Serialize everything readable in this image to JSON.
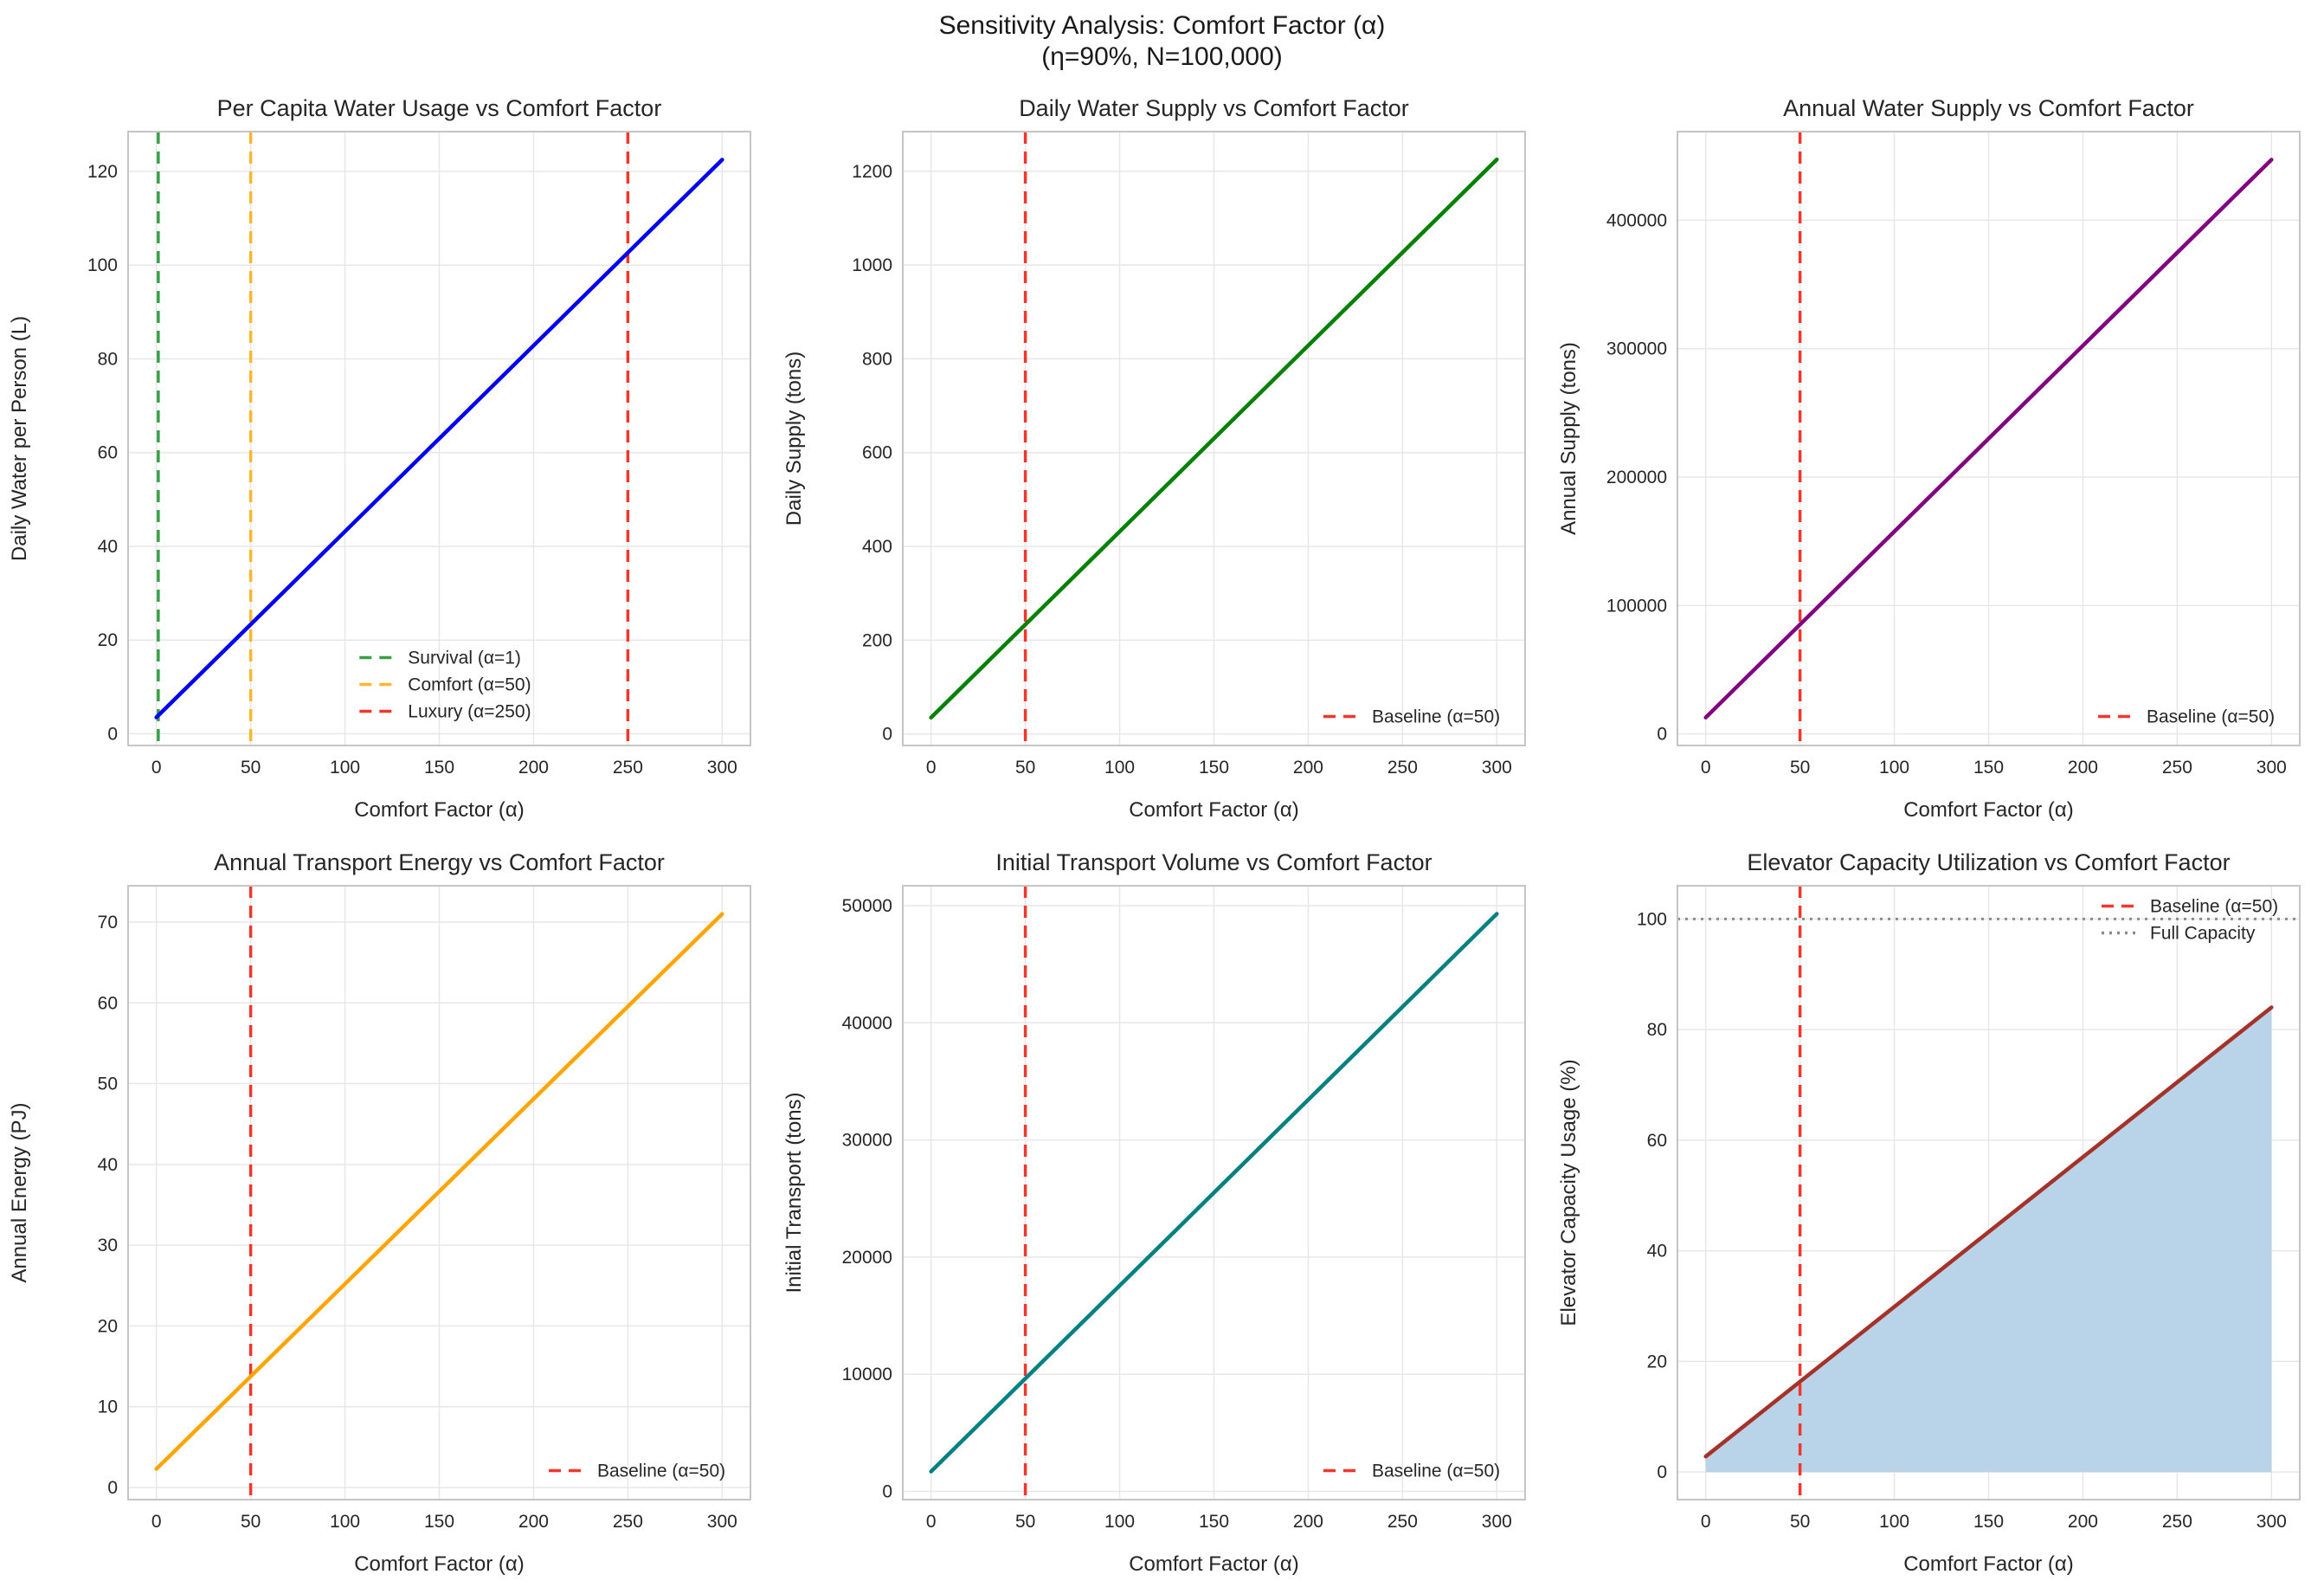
{
  "suptitle": {
    "line1": "Sensitivity Analysis: Comfort Factor (α)",
    "line2": "(η=90%, N=100,000)"
  },
  "style": {
    "grid_color": "#e7e7e7",
    "spine_color": "#c5c5c5",
    "text_color": "#262626",
    "background": "#ffffff",
    "baseline_red": "#f1362c",
    "survival_green": "#3aa048",
    "comfort_orange": "#ffb52e",
    "full_capacity_gray": "#8c8c8c",
    "capacity_fill": "#b9d4e8"
  },
  "chart_data": [
    {
      "key": "per-capita-water",
      "type": "line",
      "title": "Per Capita Water Usage vs Comfort Factor",
      "xlabel": "Comfort Factor (α)",
      "ylabel": "Daily Water per Person (L)",
      "xlim": [
        -15,
        315
      ],
      "ylim": [
        -2.5,
        128.5
      ],
      "xticks": [
        0,
        50,
        100,
        150,
        200,
        250,
        300
      ],
      "yticks": [
        0,
        20,
        40,
        60,
        80,
        100,
        120
      ],
      "grid": true,
      "series": [
        {
          "name": "per-capita-usage",
          "x": [
            0,
            300
          ],
          "y": [
            3.5,
            122.5
          ],
          "color": "#0000f0",
          "width": 4.5,
          "style": "solid"
        }
      ],
      "vlines": [
        {
          "x": 1,
          "label": "Survival (α=1)",
          "color": "#3aa048",
          "style": "dashed",
          "width": 3.5
        },
        {
          "x": 50,
          "label": "Comfort (α=50)",
          "color": "#ffb52e",
          "style": "dashed",
          "width": 3.5
        },
        {
          "x": 250,
          "label": "Luxury (α=250)",
          "color": "#f1362c",
          "style": "dashed",
          "width": 3.5
        }
      ],
      "hlines": [],
      "legend": {
        "position": "lower-center",
        "items": [
          {
            "label": "Survival (α=1)",
            "color": "#3aa048",
            "style": "dashed"
          },
          {
            "label": "Comfort (α=50)",
            "color": "#ffb52e",
            "style": "dashed"
          },
          {
            "label": "Luxury (α=250)",
            "color": "#f1362c",
            "style": "dashed"
          }
        ]
      }
    },
    {
      "key": "daily-water-supply",
      "type": "line",
      "title": "Daily Water Supply vs Comfort Factor",
      "xlabel": "Comfort Factor (α)",
      "ylabel": "Daily Supply (tons)",
      "xlim": [
        -15,
        315
      ],
      "ylim": [
        -24.5,
        1284.5
      ],
      "xticks": [
        0,
        50,
        100,
        150,
        200,
        250,
        300
      ],
      "yticks": [
        0,
        200,
        400,
        600,
        800,
        1000,
        1200
      ],
      "grid": true,
      "series": [
        {
          "name": "daily-supply",
          "x": [
            0,
            300
          ],
          "y": [
            35,
            1225
          ],
          "color": "#028002",
          "width": 4.5,
          "style": "solid"
        }
      ],
      "vlines": [
        {
          "x": 50,
          "label": "Baseline (α=50)",
          "color": "#f1362c",
          "style": "dashed",
          "width": 3.5
        }
      ],
      "hlines": [],
      "legend": {
        "position": "lower-right",
        "items": [
          {
            "label": "Baseline (α=50)",
            "color": "#f1362c",
            "style": "dashed"
          }
        ]
      }
    },
    {
      "key": "annual-water-supply",
      "type": "line",
      "title": "Annual Water Supply vs Comfort Factor",
      "xlabel": "Comfort Factor (α)",
      "ylabel": "Annual Supply (tons)",
      "xlim": [
        -15,
        315
      ],
      "ylim": [
        -9000,
        469000
      ],
      "xticks": [
        0,
        50,
        100,
        150,
        200,
        250,
        300
      ],
      "yticks": [
        0,
        100000,
        200000,
        300000,
        400000
      ],
      "grid": true,
      "series": [
        {
          "name": "annual-supply",
          "x": [
            0,
            300
          ],
          "y": [
            12775,
            447125
          ],
          "color": "#800080",
          "width": 4.5,
          "style": "solid"
        }
      ],
      "vlines": [
        {
          "x": 50,
          "label": "Baseline (α=50)",
          "color": "#f1362c",
          "style": "dashed",
          "width": 3.5
        }
      ],
      "hlines": [],
      "legend": {
        "position": "lower-right",
        "items": [
          {
            "label": "Baseline (α=50)",
            "color": "#f1362c",
            "style": "dashed"
          }
        ]
      }
    },
    {
      "key": "annual-transport-energy",
      "type": "line",
      "title": "Annual Transport Energy vs Comfort Factor",
      "xlabel": "Comfort Factor (α)",
      "ylabel": "Annual Energy (PJ)",
      "xlim": [
        -15,
        315
      ],
      "ylim": [
        -1.5,
        74.5
      ],
      "xticks": [
        0,
        50,
        100,
        150,
        200,
        250,
        300
      ],
      "yticks": [
        0,
        10,
        20,
        30,
        40,
        50,
        60,
        70
      ],
      "grid": true,
      "series": [
        {
          "name": "annual-energy",
          "x": [
            0,
            300
          ],
          "y": [
            2.3,
            71
          ],
          "color": "#ffa500",
          "width": 4.5,
          "style": "solid"
        }
      ],
      "vlines": [
        {
          "x": 50,
          "label": "Baseline (α=50)",
          "color": "#f1362c",
          "style": "dashed",
          "width": 3.5
        }
      ],
      "hlines": [],
      "legend": {
        "position": "lower-right",
        "items": [
          {
            "label": "Baseline (α=50)",
            "color": "#f1362c",
            "style": "dashed"
          }
        ]
      }
    },
    {
      "key": "initial-transport-volume",
      "type": "line",
      "title": "Initial Transport Volume vs Comfort Factor",
      "xlabel": "Comfort Factor (α)",
      "ylabel": "Initial Transport (tons)",
      "xlim": [
        -15,
        315
      ],
      "ylim": [
        -700,
        51700
      ],
      "xticks": [
        0,
        50,
        100,
        150,
        200,
        250,
        300
      ],
      "yticks": [
        0,
        10000,
        20000,
        30000,
        40000,
        50000
      ],
      "grid": true,
      "series": [
        {
          "name": "initial-transport",
          "x": [
            0,
            300
          ],
          "y": [
            1700,
            49300
          ],
          "color": "#008080",
          "width": 4.5,
          "style": "solid"
        }
      ],
      "vlines": [
        {
          "x": 50,
          "label": "Baseline (α=50)",
          "color": "#f1362c",
          "style": "dashed",
          "width": 3.5
        }
      ],
      "hlines": [],
      "legend": {
        "position": "lower-right",
        "items": [
          {
            "label": "Baseline (α=50)",
            "color": "#f1362c",
            "style": "dashed"
          }
        ]
      }
    },
    {
      "key": "elevator-capacity",
      "type": "line",
      "title": "Elevator Capacity Utilization vs Comfort Factor",
      "xlabel": "Comfort Factor (α)",
      "ylabel": "Elevator Capacity Usage (%)",
      "xlim": [
        -15,
        315
      ],
      "ylim": [
        -5,
        106
      ],
      "xticks": [
        0,
        50,
        100,
        150,
        200,
        250,
        300
      ],
      "yticks": [
        0,
        20,
        40,
        60,
        80,
        100
      ],
      "grid": true,
      "fill": {
        "series": 0,
        "to": 0,
        "color": "#b9d4e8"
      },
      "series": [
        {
          "name": "elevator-capacity-usage",
          "x": [
            0,
            300
          ],
          "y": [
            2.8,
            84
          ],
          "color": "#a53229",
          "width": 4.5,
          "style": "solid"
        }
      ],
      "vlines": [
        {
          "x": 50,
          "label": "Baseline (α=50)",
          "color": "#f1362c",
          "style": "dashed",
          "width": 3.5
        }
      ],
      "hlines": [
        {
          "y": 100,
          "label": "Full Capacity",
          "color": "#8c8c8c",
          "style": "dotted",
          "width": 3
        }
      ],
      "legend": {
        "position": "upper-right",
        "items": [
          {
            "label": "Baseline (α=50)",
            "color": "#f1362c",
            "style": "dashed"
          },
          {
            "label": "Full Capacity",
            "color": "#8c8c8c",
            "style": "dotted"
          }
        ]
      }
    }
  ]
}
